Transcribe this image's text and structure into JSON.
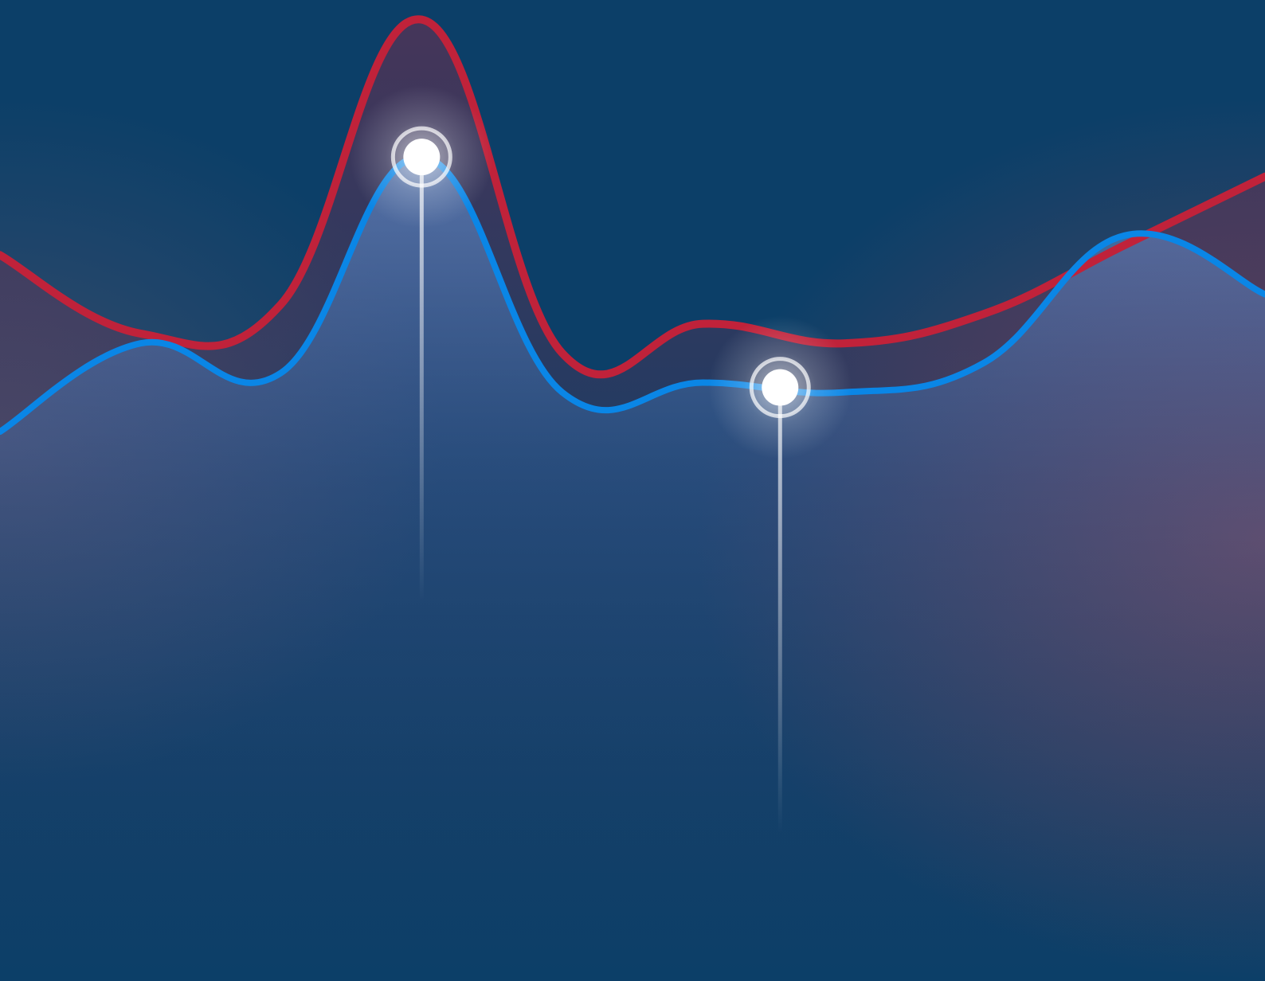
{
  "colors": {
    "background": "#0c3f68",
    "red_series": "#c0223a",
    "blue_series": "#0a86e6",
    "marker": "#ffffff"
  },
  "chart_data": {
    "type": "area",
    "title": "",
    "xlabel": "",
    "ylabel": "",
    "grid": false,
    "legend": "none",
    "x": [
      0,
      1,
      2,
      3,
      4,
      5,
      6,
      7,
      8,
      9
    ],
    "xlim": [
      0,
      9
    ],
    "ylim": [
      0,
      100
    ],
    "series": [
      {
        "color": "#c0223a",
        "values": [
          74,
          66,
          69,
          98,
          64,
          67,
          65,
          68,
          75,
          82
        ]
      },
      {
        "color": "#0a86e6",
        "values": [
          56,
          65,
          62,
          84,
          60,
          61,
          60,
          63,
          76,
          70
        ]
      }
    ],
    "highlighted_points": [
      {
        "series": 1,
        "x": 3.0,
        "y": 84
      },
      {
        "series": 1,
        "x": 5.55,
        "y": 60.5
      }
    ]
  }
}
